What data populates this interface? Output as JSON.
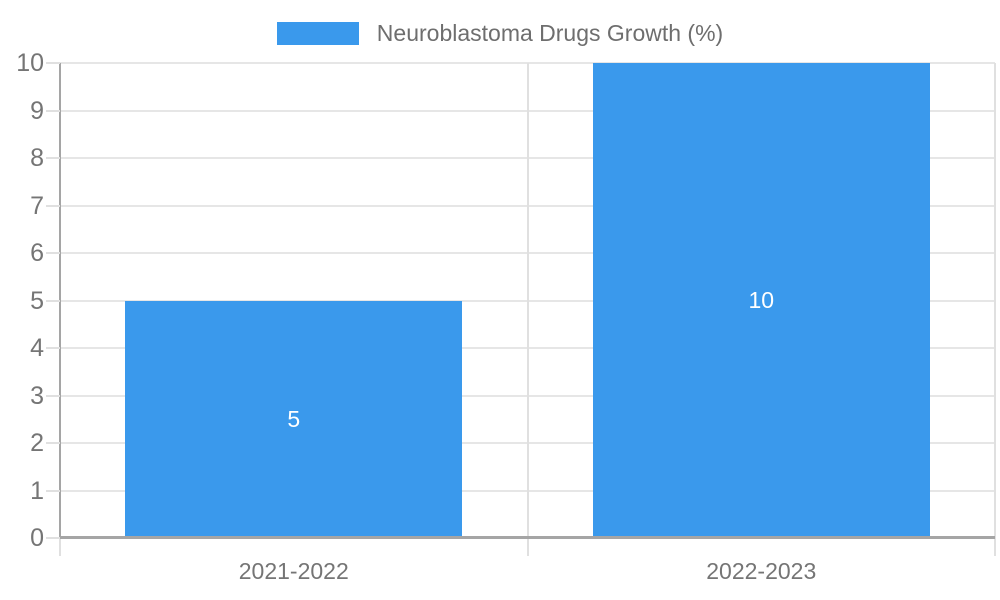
{
  "chart_data": {
    "type": "bar",
    "title": "Neuroblastoma Drugs Growth (%)",
    "legend": {
      "label": "Neuroblastoma Drugs Growth (%)",
      "position": "top-center"
    },
    "categories": [
      "2021-2022",
      "2022-2023"
    ],
    "series": [
      {
        "name": "Neuroblastoma Drugs Growth (%)",
        "values": [
          5,
          10
        ]
      }
    ],
    "data_labels": [
      "5",
      "10"
    ],
    "xlabel": "",
    "ylabel": "",
    "ylim": [
      0,
      10
    ],
    "yticks": [
      0,
      1,
      2,
      3,
      4,
      5,
      6,
      7,
      8,
      9,
      10
    ],
    "grid": true,
    "colors": {
      "bar": "#3A99EC",
      "data_label": "#FFFFFF",
      "axis_line": "#A5A5A5",
      "gridline": "#E6E6E6",
      "divider": "#E0E0E0",
      "tick_label": "#757575",
      "legend_text": "#6E6E6E",
      "background": "#FFFFFF"
    }
  }
}
